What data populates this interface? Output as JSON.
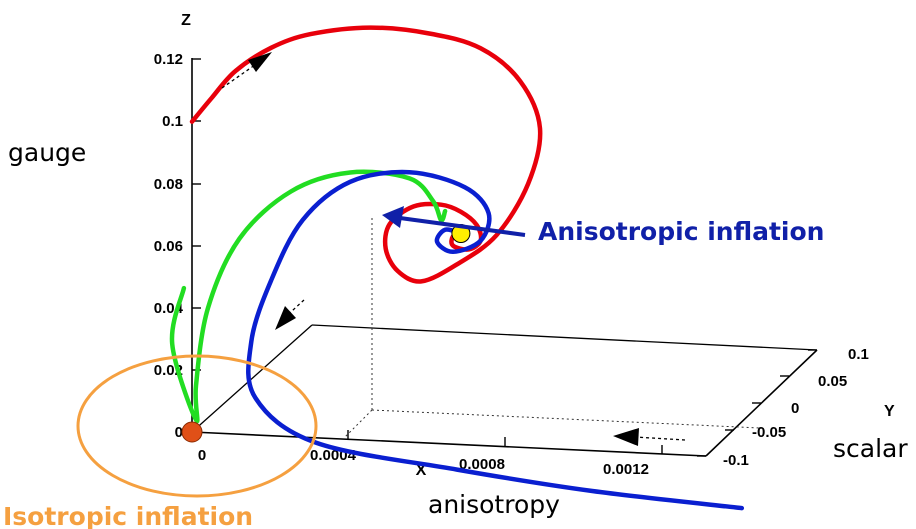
{
  "chart_data": {
    "type": "line",
    "title": "",
    "axes": {
      "x": {
        "label": "X",
        "ticks": [
          "0",
          "0.0004",
          "0.0008",
          "0.0012"
        ],
        "range": [
          0,
          0.0013
        ]
      },
      "y": {
        "label": "Y",
        "ticks": [
          "0.1",
          "0.05",
          "0",
          "-0.05",
          "-0.1"
        ],
        "range": [
          -0.1,
          0.1
        ]
      },
      "z": {
        "label": "Z",
        "ticks": [
          "0",
          "0.02",
          "0.04",
          "0.06",
          "0.08",
          "0.1",
          "0.12"
        ],
        "range": [
          0,
          0.12
        ]
      }
    },
    "axis_descriptions": {
      "x": "anisotropy",
      "y": "scalar",
      "z": "gauge"
    },
    "annotations": {
      "attractor": "Anisotropic inflation",
      "origin": "Isotropic inflation"
    },
    "colors": {
      "red": "#e8000b",
      "green": "#22dd22",
      "blue": "#0a1fd0",
      "attractor_annotation": "#1020a8",
      "origin_annotation": "#f5a040",
      "fixed_point": "#ffee00",
      "origin_point": "#e05018"
    },
    "fixed_points": [
      {
        "name": "anisotropic",
        "x": 0.00068,
        "y": 0.0,
        "z": 0.068
      },
      {
        "name": "isotropic",
        "x": 0.0,
        "y": 0.0,
        "z": 0.0
      }
    ],
    "series": [
      {
        "color": "red",
        "points": [
          [
            0.0,
            0.0,
            0.1
          ],
          [
            5e-05,
            0.0,
            0.108
          ],
          [
            0.00011,
            0.0,
            0.117
          ],
          [
            0.0002,
            0.0,
            0.125
          ],
          [
            0.0003,
            0.0,
            0.13
          ],
          [
            0.00045,
            0.0,
            0.133
          ],
          [
            0.0006,
            0.0,
            0.132
          ],
          [
            0.00073,
            0.0,
            0.128
          ],
          [
            0.00083,
            0.0,
            0.118
          ],
          [
            0.00088,
            0.0,
            0.103
          ],
          [
            0.00085,
            0.0,
            0.085
          ],
          [
            0.00077,
            0.0,
            0.068
          ],
          [
            0.00067,
            0.0,
            0.058
          ],
          [
            0.00058,
            0.0,
            0.052
          ],
          [
            0.00052,
            0.0,
            0.055
          ],
          [
            0.00049,
            0.0,
            0.062
          ],
          [
            0.0005,
            0.0,
            0.07
          ],
          [
            0.00056,
            0.0,
            0.076
          ],
          [
            0.00063,
            0.0,
            0.077
          ],
          [
            0.00068,
            0.0,
            0.075
          ],
          [
            0.00072,
            0.0,
            0.071
          ],
          [
            0.00073,
            0.0,
            0.066
          ],
          [
            0.0007,
            0.0,
            0.063
          ],
          [
            0.00066,
            0.0,
            0.064
          ],
          [
            0.00066,
            0.0,
            0.067
          ],
          [
            0.00068,
            0.0,
            0.068
          ]
        ]
      },
      {
        "color": "green",
        "points": [
          [
            0.00012,
            0.1,
            0.03
          ],
          [
            2e-05,
            0.05,
            0.02
          ],
          [
            1e-05,
            0.0,
            0.004
          ],
          [
            1e-05,
            0.0,
            0.015
          ],
          [
            4e-05,
            0.0,
            0.04
          ],
          [
            0.00012,
            0.0,
            0.063
          ],
          [
            0.00025,
            0.0,
            0.079
          ],
          [
            0.0004,
            0.0,
            0.086
          ],
          [
            0.00055,
            0.0,
            0.085
          ],
          [
            0.00061,
            0.0,
            0.078
          ],
          [
            0.00063,
            0.0,
            0.072
          ],
          [
            0.00064,
            0.0,
            0.075
          ]
        ]
      },
      {
        "color": "blue",
        "points": [
          [
            0.00125,
            -0.1,
            0.0
          ],
          [
            0.0009,
            -0.08,
            0.0
          ],
          [
            0.0006,
            -0.05,
            0.0
          ],
          [
            0.0003,
            -0.01,
            0.0
          ],
          [
            0.00016,
            0.0,
            0.012
          ],
          [
            0.00015,
            0.0,
            0.03
          ],
          [
            0.0002,
            0.0,
            0.05
          ],
          [
            0.00028,
            0.0,
            0.07
          ],
          [
            0.0004,
            0.0,
            0.083
          ],
          [
            0.00055,
            0.0,
            0.087
          ],
          [
            0.00069,
            0.0,
            0.083
          ],
          [
            0.00075,
            0.0,
            0.075
          ],
          [
            0.00073,
            0.0,
            0.066
          ],
          [
            0.00066,
            0.0,
            0.062
          ],
          [
            0.00062,
            0.0,
            0.065
          ],
          [
            0.00064,
            0.0,
            0.069
          ],
          [
            0.00068,
            0.0,
            0.068
          ]
        ]
      }
    ]
  }
}
